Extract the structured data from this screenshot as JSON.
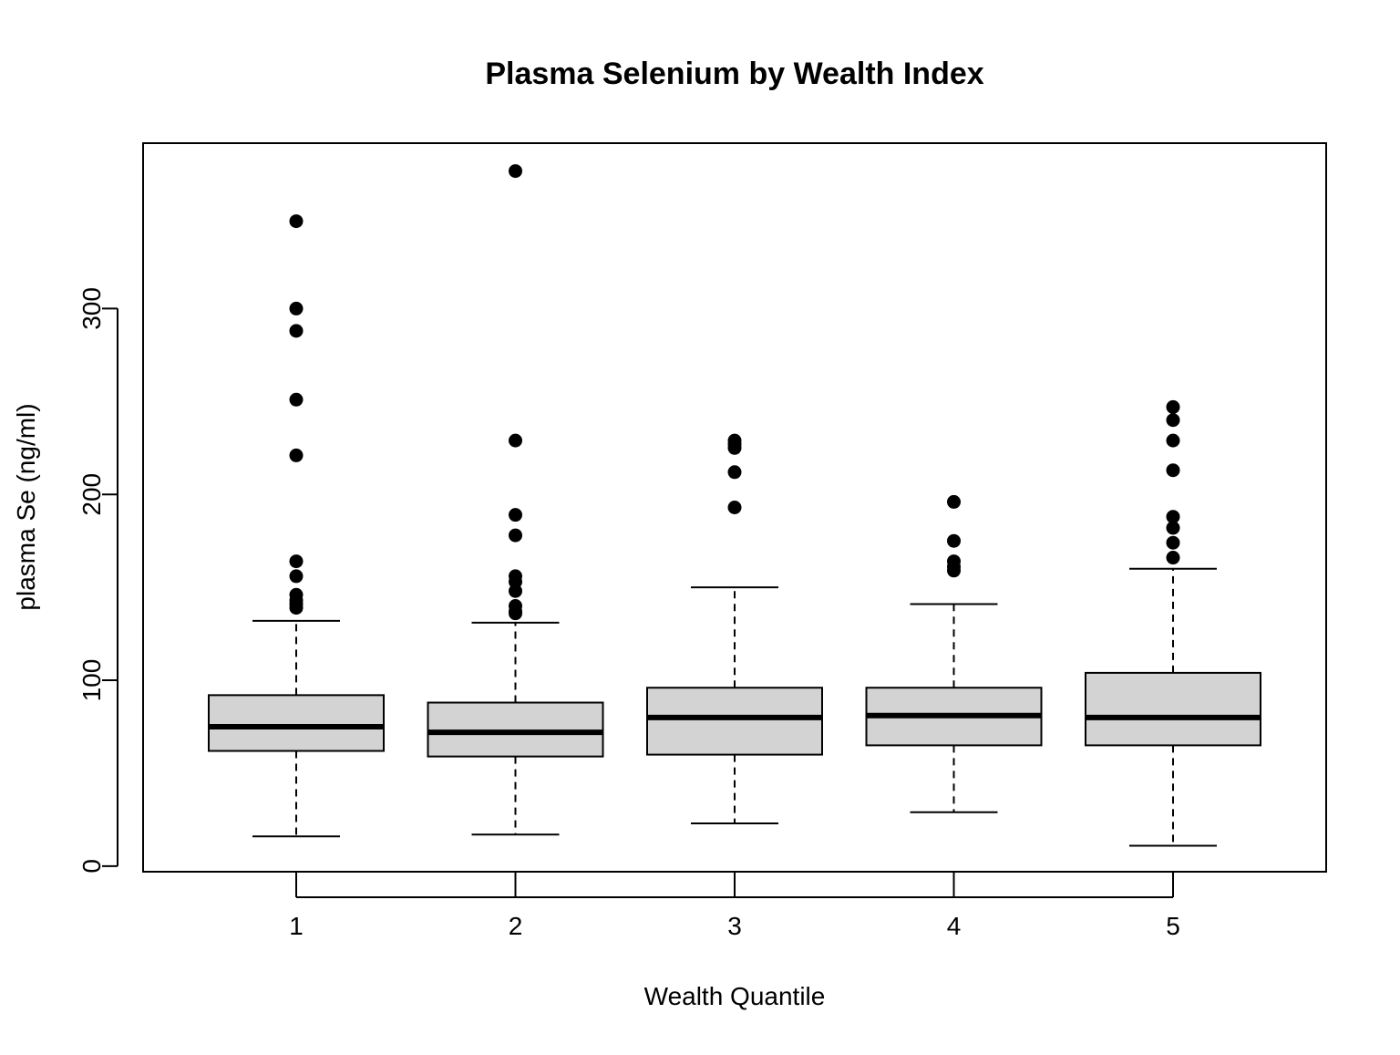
{
  "chart_data": {
    "type": "boxplot",
    "title": "Plasma Selenium by Wealth Index",
    "xlabel": "Wealth Quantile",
    "ylabel": "plasma Se (ng/ml)",
    "ylim": [
      -3,
      389
    ],
    "yticks": [
      0,
      100,
      200,
      300
    ],
    "categories": [
      "1",
      "2",
      "3",
      "4",
      "5"
    ],
    "box_fill": "#d3d3d3",
    "grid": false,
    "boxes": [
      {
        "category": "1",
        "whisker_low": 16,
        "q1": 62,
        "median": 75,
        "q3": 92,
        "whisker_high": 132,
        "outliers": [
          347,
          300,
          288,
          251,
          221,
          164,
          156,
          146,
          143,
          141,
          139
        ]
      },
      {
        "category": "2",
        "whisker_low": 17,
        "q1": 59,
        "median": 72,
        "q3": 88,
        "whisker_high": 131,
        "outliers": [
          374,
          229,
          189,
          178,
          156,
          153,
          148,
          140,
          137,
          136
        ]
      },
      {
        "category": "3",
        "whisker_low": 23,
        "q1": 60,
        "median": 80,
        "q3": 96,
        "whisker_high": 150,
        "outliers": [
          229,
          227,
          225,
          212,
          193
        ]
      },
      {
        "category": "4",
        "whisker_low": 29,
        "q1": 65,
        "median": 81,
        "q3": 96,
        "whisker_high": 141,
        "outliers": [
          196,
          175,
          164,
          161,
          159
        ]
      },
      {
        "category": "5",
        "whisker_low": 11,
        "q1": 65,
        "median": 80,
        "q3": 104,
        "whisker_high": 160,
        "outliers": [
          247,
          240,
          229,
          213,
          188,
          182,
          174,
          166
        ]
      }
    ]
  }
}
